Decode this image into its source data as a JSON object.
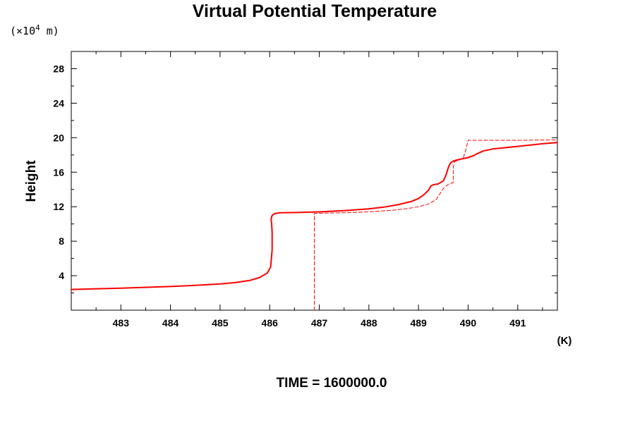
{
  "chart_data": {
    "type": "line",
    "title": "Virtual Potential Temperature",
    "ylabel": "Height",
    "yunit_prefix": "(×10",
    "yunit_exp": "4",
    "yunit_suffix": " m)",
    "xunit": "(K)",
    "xlim": [
      482.0,
      491.8
    ],
    "ylim": [
      0.0,
      30.0
    ],
    "xticks": [
      483,
      484,
      485,
      486,
      487,
      488,
      489,
      490,
      491
    ],
    "yticks": [
      4,
      8,
      12,
      16,
      20,
      24,
      28
    ],
    "grid": false,
    "color": "#ff0000",
    "series": [
      {
        "style": "solid",
        "x": [
          482.0,
          483.0,
          484.0,
          484.5,
          485.0,
          485.3,
          485.6,
          485.8,
          485.95,
          486.02,
          486.05,
          486.05,
          486.04,
          486.03,
          486.05,
          486.1,
          486.2,
          486.5,
          487.0,
          487.5,
          488.0,
          488.3,
          488.6,
          488.85,
          489.0,
          489.1,
          489.2,
          489.25,
          489.3,
          489.4,
          489.5,
          489.55,
          489.6,
          489.62,
          489.65,
          489.7,
          489.8,
          490.0,
          490.1,
          490.2,
          490.3,
          490.5,
          491.0,
          491.5,
          491.8
        ],
        "y": [
          2.4,
          2.55,
          2.75,
          2.88,
          3.05,
          3.2,
          3.45,
          3.8,
          4.3,
          5.0,
          7.0,
          9.0,
          10.0,
          10.6,
          11.0,
          11.2,
          11.3,
          11.32,
          11.4,
          11.55,
          11.75,
          11.95,
          12.25,
          12.6,
          12.95,
          13.35,
          13.9,
          14.4,
          14.55,
          14.65,
          15.0,
          15.6,
          16.5,
          16.8,
          17.1,
          17.3,
          17.45,
          17.7,
          17.9,
          18.2,
          18.45,
          18.7,
          19.0,
          19.3,
          19.45
        ]
      },
      {
        "style": "dashed",
        "x": [
          486.9,
          486.9,
          486.9,
          487.0,
          487.5,
          488.0,
          488.5,
          488.8,
          489.0,
          489.2,
          489.35,
          489.4,
          489.5,
          489.6,
          489.7,
          489.7,
          489.72,
          489.9,
          489.95,
          489.98,
          490.0,
          490.3,
          491.0,
          491.8
        ],
        "y": [
          0.0,
          5.0,
          11.2,
          11.25,
          11.3,
          11.4,
          11.6,
          11.8,
          12.0,
          12.3,
          12.8,
          13.2,
          14.1,
          14.6,
          14.8,
          16.5,
          17.2,
          17.6,
          18.5,
          19.2,
          19.7,
          19.7,
          19.7,
          19.75
        ]
      }
    ]
  },
  "footer_label": "TIME = 1600000.0"
}
